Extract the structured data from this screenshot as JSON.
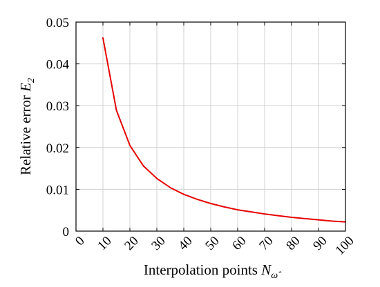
{
  "chart_data": {
    "type": "line",
    "xlabel": "Interpolation points N",
    "xlabel_main": "Interpolation points ",
    "xlabel_symbol": "N",
    "xlabel_subscript": "ω̂",
    "ylabel": "Relative error E2",
    "ylabel_main": "Relative error ",
    "ylabel_symbol": "E",
    "ylabel_subscript": "2",
    "xlim": [
      0,
      100
    ],
    "ylim": [
      0,
      0.05
    ],
    "xticks": [
      0,
      10,
      20,
      30,
      40,
      50,
      60,
      70,
      80,
      90,
      100
    ],
    "xtick_labels": [
      "0",
      "10",
      "20",
      "30",
      "40",
      "50",
      "60",
      "70",
      "80",
      "90",
      "100"
    ],
    "yticks": [
      0,
      0.01,
      0.02,
      0.03,
      0.04,
      0.05
    ],
    "ytick_labels": [
      "0",
      "0.01",
      "0.02",
      "0.03",
      "0.04",
      "0.05"
    ],
    "grid": true,
    "series": [
      {
        "color": "#e60000",
        "x": [
          10,
          15,
          20,
          25,
          30,
          35,
          40,
          45,
          50,
          55,
          60,
          65,
          70,
          75,
          80,
          85,
          90,
          95,
          100
        ],
        "y": [
          0.0462,
          0.0289,
          0.0205,
          0.0156,
          0.0126,
          0.0104,
          0.0088,
          0.0076,
          0.0066,
          0.0058,
          0.0051,
          0.0046,
          0.0041,
          0.0037,
          0.0033,
          0.003,
          0.0027,
          0.0024,
          0.0022
        ]
      }
    ]
  }
}
